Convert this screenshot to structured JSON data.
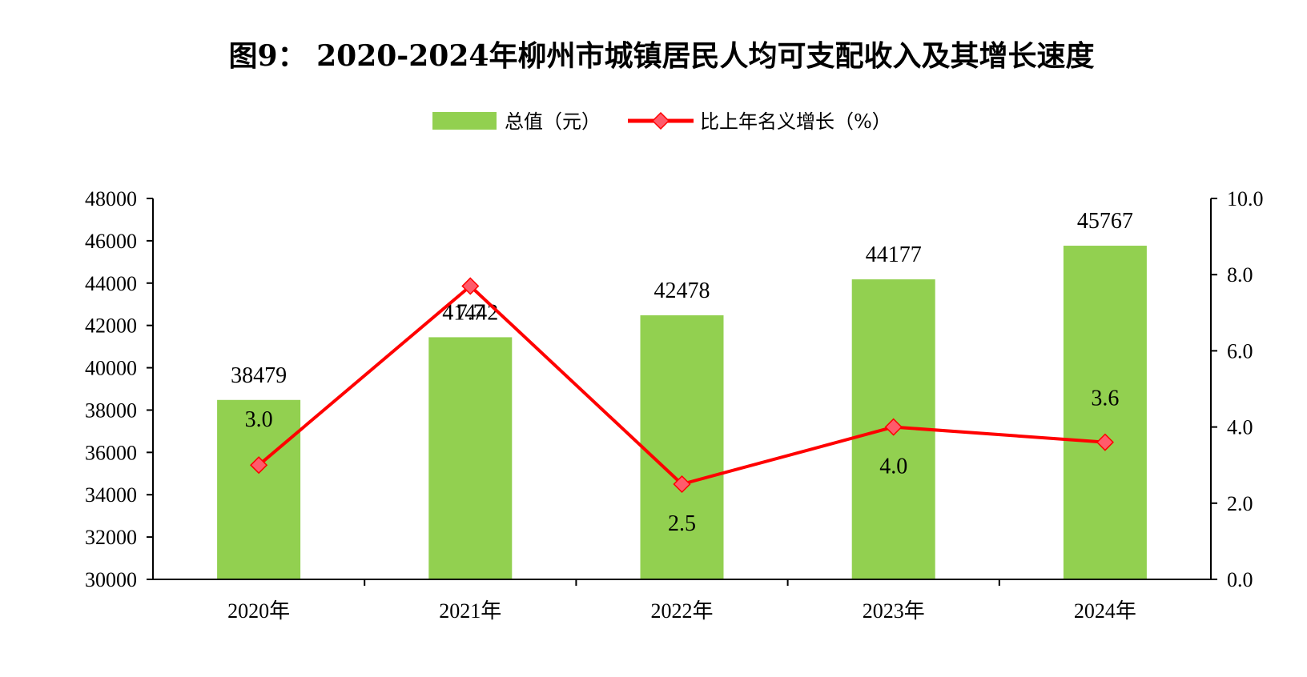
{
  "chart_data": {
    "type": "bar+line",
    "title": "图9： 2020-2024年柳州市城镇居民人均可支配收入及其增长速度",
    "categories": [
      "2020年",
      "2021年",
      "2022年",
      "2023年",
      "2024年"
    ],
    "series": [
      {
        "name": "总值（元）",
        "type": "bar",
        "axis": "left",
        "values": [
          38479,
          41442,
          42478,
          44177,
          45767
        ],
        "labels": [
          "38479",
          "41442",
          "42478",
          "44177",
          "45767"
        ]
      },
      {
        "name": "比上年名义增长（%）",
        "type": "line",
        "axis": "right",
        "values": [
          3.0,
          7.7,
          2.5,
          4.0,
          3.6
        ],
        "labels": [
          "3.0",
          "7.7",
          "2.5",
          "4.0",
          "3.6"
        ]
      }
    ],
    "y_left": {
      "min": 30000,
      "max": 48000,
      "ticks": [
        30000,
        32000,
        34000,
        36000,
        38000,
        40000,
        42000,
        44000,
        46000,
        48000
      ],
      "tick_labels": [
        "30000",
        "32000",
        "34000",
        "36000",
        "38000",
        "40000",
        "42000",
        "44000",
        "46000",
        "48000"
      ]
    },
    "y_right": {
      "min": 0,
      "max": 10,
      "ticks": [
        0,
        2,
        4,
        6,
        8,
        10
      ],
      "tick_labels": [
        "0.0",
        "2.0",
        "4.0",
        "6.0",
        "8.0",
        "10.0"
      ]
    },
    "legend_position": "top-center",
    "grid": false,
    "colors": {
      "bar": "#92d050",
      "line": "#ff0000",
      "marker": "#ff5b6b",
      "axis": "#000000"
    }
  }
}
